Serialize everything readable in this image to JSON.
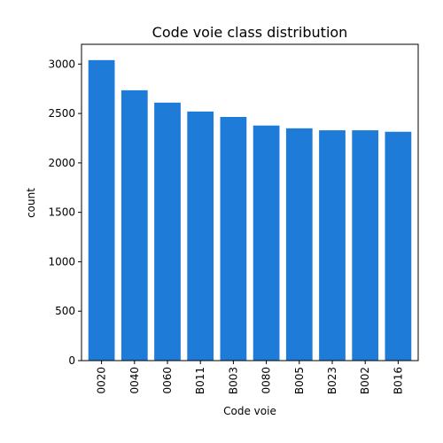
{
  "chart_data": {
    "type": "bar",
    "title": "Code voie class distribution",
    "xlabel": "Code voie",
    "ylabel": "count",
    "categories": [
      "0020",
      "0040",
      "0060",
      "B011",
      "B003",
      "0080",
      "B005",
      "B023",
      "B002",
      "B016"
    ],
    "values": [
      3040,
      2735,
      2610,
      2520,
      2465,
      2378,
      2350,
      2330,
      2330,
      2315
    ],
    "ylim": [
      0,
      3200
    ],
    "yticks": [
      0,
      500,
      1000,
      1500,
      2000,
      2500,
      3000
    ],
    "grid": false,
    "legend": "none",
    "bar_color": "#1f7bd8"
  }
}
